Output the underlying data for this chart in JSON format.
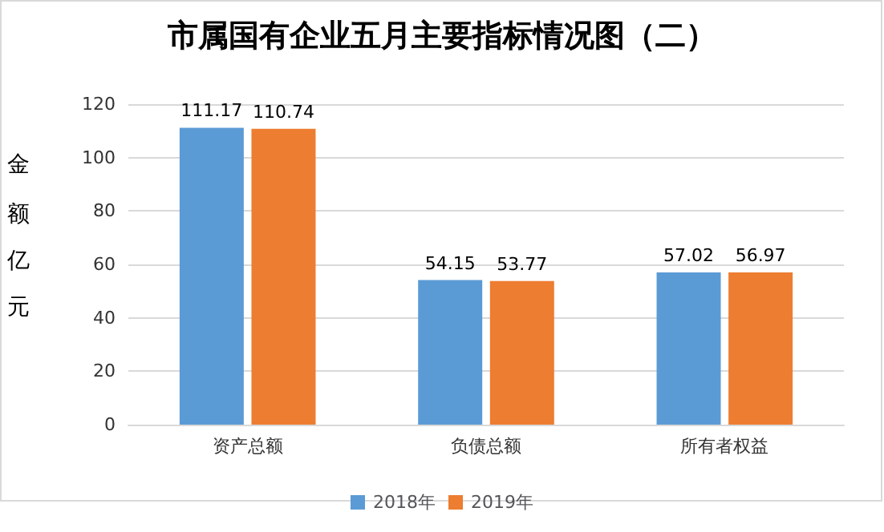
{
  "chart_data": {
    "type": "bar",
    "title": "市属国有企业五月主要指标情况图（二）",
    "ylabel": "金额亿元",
    "categories": [
      "资产总额",
      "负债总额",
      "所有者权益"
    ],
    "series": [
      {
        "name": "2018年",
        "color": "#5b9bd5",
        "values": [
          111.17,
          54.15,
          57.02
        ]
      },
      {
        "name": "2019年",
        "color": "#ed7d31",
        "values": [
          110.74,
          53.77,
          56.97
        ]
      }
    ],
    "ylim": [
      0,
      120
    ],
    "yticks": [
      0,
      20,
      40,
      60,
      80,
      100,
      120
    ],
    "grid": "y",
    "legend": "bottom",
    "data_labels": true
  }
}
